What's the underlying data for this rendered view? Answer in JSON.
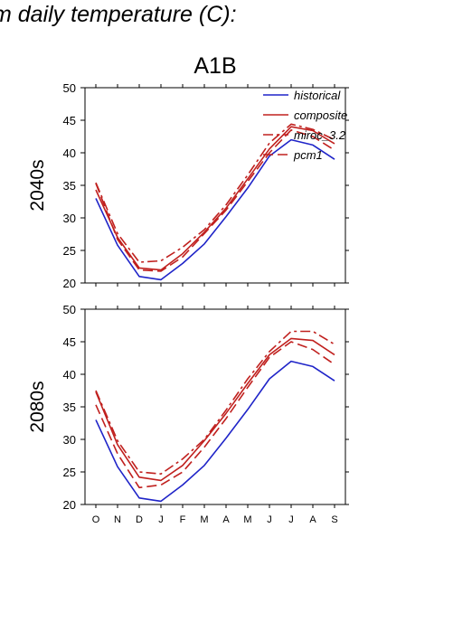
{
  "heading": "m daily temperature (C):",
  "chart_data": {
    "type": "line",
    "subtitle": "A1B",
    "months": [
      "O",
      "N",
      "D",
      "J",
      "F",
      "M",
      "A",
      "M",
      "J",
      "J",
      "A",
      "S"
    ],
    "ylim": [
      20,
      50
    ],
    "yticks": [
      20,
      25,
      30,
      35,
      40,
      45,
      50
    ],
    "legend": [
      {
        "name": "historical",
        "color": "#1f24c8",
        "dash": "solid"
      },
      {
        "name": "composite",
        "color": "#c0201e",
        "dash": "solid"
      },
      {
        "name": "miroc_3.2",
        "color": "#c0201e",
        "dash": "dashdot"
      },
      {
        "name": "pcm1",
        "color": "#c0201e",
        "dash": "dashed"
      }
    ],
    "panels": [
      {
        "label": "2040s",
        "series": [
          {
            "name": "historical",
            "values": [
              33.0,
              25.8,
              21.0,
              20.5,
              23.0,
              26.0,
              30.2,
              34.6,
              39.5,
              42.0,
              41.2,
              39.0
            ]
          },
          {
            "name": "composite",
            "values": [
              34.3,
              27.0,
              22.3,
              22.0,
              24.5,
              27.8,
              31.5,
              36.0,
              40.6,
              44.0,
              43.4,
              41.4
            ]
          },
          {
            "name": "miroc_3.2",
            "values": [
              35.4,
              27.6,
              23.2,
              23.4,
              25.5,
              28.2,
              32.0,
              36.6,
              41.5,
              44.4,
              43.6,
              42.0
            ]
          },
          {
            "name": "pcm1",
            "values": [
              35.3,
              26.7,
              22.0,
              21.8,
              24.0,
              27.6,
              31.2,
              35.6,
              40.0,
              43.5,
              42.5,
              40.4
            ]
          }
        ]
      },
      {
        "label": "2080s",
        "series": [
          {
            "name": "historical",
            "values": [
              33.0,
              25.8,
              21.0,
              20.5,
              23.0,
              26.0,
              30.2,
              34.6,
              39.3,
              42.0,
              41.2,
              39.0
            ]
          },
          {
            "name": "composite",
            "values": [
              37.3,
              29.2,
              24.2,
              23.7,
              26.0,
              29.8,
              34.0,
              38.6,
              43.0,
              45.5,
              45.2,
              43.0
            ]
          },
          {
            "name": "miroc_3.2",
            "values": [
              37.5,
              29.8,
              25.0,
              24.7,
              27.0,
              30.0,
              34.5,
              39.3,
              43.5,
              46.6,
              46.6,
              44.6
            ]
          },
          {
            "name": "pcm1",
            "values": [
              35.3,
              27.8,
              22.6,
              23.0,
              25.0,
              28.8,
              33.2,
              38.0,
              42.6,
              45.0,
              43.8,
              41.5
            ]
          }
        ]
      }
    ]
  }
}
